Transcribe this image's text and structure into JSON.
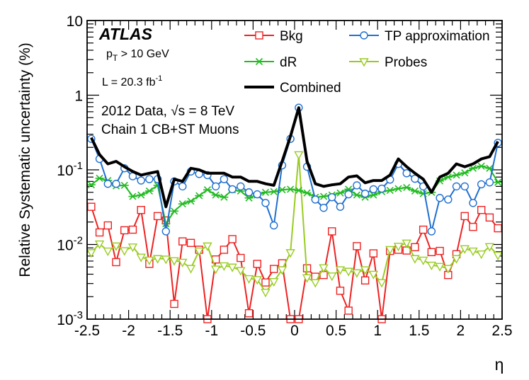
{
  "chart_data": {
    "type": "line",
    "xlabel": "η",
    "ylabel": "Relative Systematic uncertainty (%)",
    "xlim": [
      -2.5,
      2.5
    ],
    "ylim": [
      0.001,
      10
    ],
    "yscale": "log",
    "grid": false,
    "legend_position": "top-right",
    "x_ticks": [
      -2.5,
      -2,
      -1.5,
      -1,
      -0.5,
      0,
      0.5,
      1,
      1.5,
      2,
      2.5
    ],
    "x_tick_labels": [
      "-2.5",
      "-2",
      "-1.5",
      "-1",
      "-0.5",
      "0",
      "0.5",
      "1",
      "1.5",
      "2",
      "2.5"
    ],
    "y_ticks": [
      0.001,
      0.01,
      0.1,
      1,
      10
    ],
    "y_tick_labels": [
      {
        "base": "10",
        "exp": "-3"
      },
      {
        "base": "10",
        "exp": "-2"
      },
      {
        "base": "10",
        "exp": "-1"
      },
      {
        "base": "1",
        "exp": ""
      },
      {
        "base": "10",
        "exp": ""
      }
    ],
    "annotations": {
      "atlas": "ATLAS",
      "pt_main": "p",
      "pt_sub": "T",
      "pt_rest": " > 10 GeV",
      "lumi_main": "L = 20.3 fb",
      "lumi_sup": "-1",
      "data_pre": "2012 Data, ",
      "data_sqrt": "√s",
      "data_post": " = 8 TeV",
      "chain": "Chain 1 CB+ST Muons"
    },
    "x": [
      -2.45,
      -2.35,
      -2.25,
      -2.15,
      -2.05,
      -1.95,
      -1.85,
      -1.75,
      -1.65,
      -1.55,
      -1.45,
      -1.35,
      -1.25,
      -1.15,
      -1.05,
      -0.95,
      -0.85,
      -0.75,
      -0.65,
      -0.55,
      -0.45,
      -0.35,
      -0.25,
      -0.15,
      -0.05,
      0.05,
      0.15,
      0.25,
      0.35,
      0.45,
      0.55,
      0.65,
      0.75,
      0.85,
      0.95,
      1.05,
      1.15,
      1.25,
      1.35,
      1.45,
      1.55,
      1.65,
      1.75,
      1.85,
      1.95,
      2.05,
      2.15,
      2.25,
      2.35,
      2.45
    ],
    "series": [
      {
        "name": "Bkg",
        "color": "#ee2222",
        "marker": "square",
        "values": [
          0.032,
          0.0145,
          0.018,
          0.0058,
          0.0155,
          0.0158,
          0.029,
          0.0055,
          0.024,
          0.021,
          0.0016,
          0.011,
          0.0105,
          0.0085,
          0.001,
          0.0063,
          0.0085,
          0.0118,
          0.0066,
          0.0012,
          0.0055,
          0.0031,
          0.0047,
          0.0056,
          0.001,
          0.001,
          0.0048,
          0.0037,
          0.0039,
          0.015,
          0.0024,
          0.0013,
          0.0095,
          0.0033,
          0.0076,
          0.001,
          0.0082,
          0.0085,
          0.0083,
          0.0092,
          0.0158,
          0.0079,
          0.0082,
          0.0039,
          0.0074,
          0.024,
          0.0172,
          0.029,
          0.023,
          0.0165
        ]
      },
      {
        "name": "TP approximation",
        "color": "#1f6fd0",
        "marker": "circle",
        "values": [
          0.26,
          0.14,
          0.065,
          0.065,
          0.105,
          0.082,
          0.072,
          0.075,
          0.075,
          0.015,
          0.07,
          0.06,
          0.095,
          0.088,
          0.085,
          0.06,
          0.075,
          0.055,
          0.06,
          0.05,
          0.047,
          0.036,
          0.018,
          0.115,
          0.26,
          0.68,
          0.11,
          0.04,
          0.031,
          0.043,
          0.032,
          0.047,
          0.062,
          0.048,
          0.055,
          0.056,
          0.074,
          0.12,
          0.09,
          0.076,
          0.06,
          0.015,
          0.042,
          0.04,
          0.06,
          0.06,
          0.036,
          0.064,
          0.068,
          0.23
        ]
      },
      {
        "name": "dR",
        "color": "#22bb22",
        "marker": "star",
        "values": [
          0.063,
          0.077,
          0.072,
          0.061,
          0.062,
          0.044,
          0.046,
          0.052,
          0.062,
          0.019,
          0.028,
          0.035,
          0.038,
          0.045,
          0.054,
          0.046,
          0.043,
          0.054,
          0.052,
          0.042,
          0.046,
          0.05,
          0.051,
          0.054,
          0.055,
          0.053,
          0.049,
          0.043,
          0.044,
          0.046,
          0.049,
          0.055,
          0.046,
          0.043,
          0.046,
          0.051,
          0.053,
          0.056,
          0.058,
          0.052,
          0.048,
          0.05,
          0.071,
          0.08,
          0.085,
          0.091,
          0.105,
          0.112,
          0.105,
          0.068
        ]
      },
      {
        "name": "Probes",
        "color": "#99cc22",
        "marker": "triangle-down",
        "values": [
          0.0078,
          0.0102,
          0.0082,
          0.0096,
          0.0083,
          0.0093,
          0.0068,
          0.0062,
          0.0065,
          0.0064,
          0.0061,
          0.0058,
          0.0048,
          0.0082,
          0.0096,
          0.0047,
          0.0052,
          0.005,
          0.0045,
          0.0035,
          0.0034,
          0.0023,
          0.0032,
          0.0046,
          0.0078,
          0.16,
          0.0036,
          0.0031,
          0.0049,
          0.0038,
          0.0046,
          0.0044,
          0.0042,
          0.0046,
          0.004,
          0.0031,
          0.0086,
          0.0095,
          0.0105,
          0.0065,
          0.0062,
          0.0053,
          0.0051,
          0.0048,
          0.0065,
          0.0088,
          0.0082,
          0.0075,
          0.0094,
          0.0072
        ]
      },
      {
        "name": "Combined",
        "color": "#000000",
        "marker": "none",
        "values": [
          0.27,
          0.16,
          0.12,
          0.13,
          0.11,
          0.095,
          0.085,
          0.09,
          0.095,
          0.032,
          0.075,
          0.07,
          0.105,
          0.1,
          0.09,
          0.09,
          0.09,
          0.08,
          0.08,
          0.07,
          0.07,
          0.065,
          0.062,
          0.13,
          0.28,
          0.68,
          0.13,
          0.065,
          0.06,
          0.063,
          0.065,
          0.08,
          0.083,
          0.067,
          0.072,
          0.072,
          0.085,
          0.14,
          0.11,
          0.09,
          0.075,
          0.05,
          0.08,
          0.09,
          0.12,
          0.11,
          0.12,
          0.14,
          0.15,
          0.24
        ]
      }
    ]
  }
}
